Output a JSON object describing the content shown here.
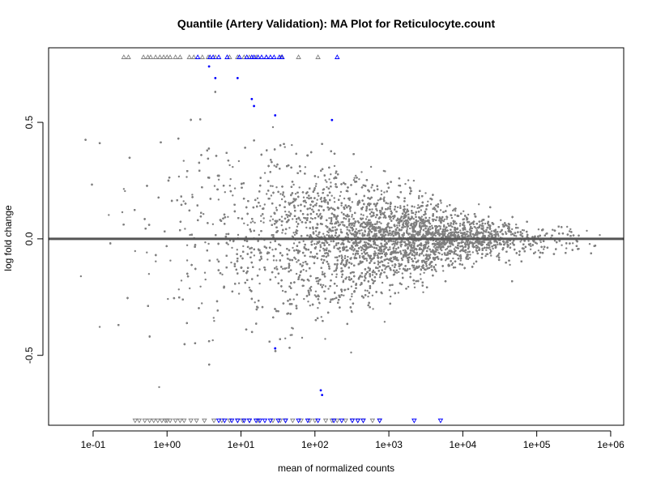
{
  "chart_data": {
    "type": "scatter",
    "title": "Quantile (Artery Validation): MA Plot for Reticulocyte.count",
    "xlabel": "mean of normalized counts",
    "ylabel": "log fold change",
    "x_scale": "log10",
    "xlim": [
      0.025,
      1500000
    ],
    "ylim": [
      -0.8,
      0.82
    ],
    "x_ticks": [
      {
        "value": 0.1,
        "label": "1e-01"
      },
      {
        "value": 1,
        "label": "1e+00"
      },
      {
        "value": 10,
        "label": "1e+01"
      },
      {
        "value": 100,
        "label": "1e+02"
      },
      {
        "value": 1000,
        "label": "1e+03"
      },
      {
        "value": 10000,
        "label": "1e+04"
      },
      {
        "value": 100000,
        "label": "1e+05"
      },
      {
        "value": 1000000,
        "label": "1e+06"
      }
    ],
    "y_ticks": [
      {
        "value": -0.5,
        "label": "-0.5"
      },
      {
        "value": 0.0,
        "label": "0.0"
      },
      {
        "value": 0.5,
        "label": "0.5"
      }
    ],
    "reference_line_y": 0,
    "colors": {
      "not_significant": "#808080",
      "significant": "#0000ff",
      "reference_line": "#555555",
      "axes": "#000000"
    },
    "series": [
      {
        "marker": "dot",
        "color": "#808080",
        "approximate_point_count": 19000,
        "density_peak_x": 3000,
        "spread_note": "points fan out from tight cluster near 0 at high counts to wide spread at low counts"
      },
      {
        "marker": "dot",
        "color": "#0000ff",
        "points": [
          {
            "x": 3.7,
            "y": 0.74
          },
          {
            "x": 4.5,
            "y": 0.69
          },
          {
            "x": 9.0,
            "y": 0.69
          },
          {
            "x": 14,
            "y": 0.6
          },
          {
            "x": 15,
            "y": 0.57
          },
          {
            "x": 29,
            "y": 0.53
          },
          {
            "x": 170,
            "y": 0.51
          },
          {
            "x": 29,
            "y": -0.47
          },
          {
            "x": 120,
            "y": -0.65
          },
          {
            "x": 125,
            "y": -0.67
          }
        ]
      },
      {
        "marker": "triangle-up",
        "color": "#808080",
        "y": 0.78,
        "x": [
          0.26,
          0.3,
          0.48,
          0.55,
          0.6,
          0.7,
          0.8,
          0.9,
          1.0,
          1.1,
          1.3,
          1.5,
          2.0,
          2.3,
          3.0,
          3.6,
          4.5,
          7.0,
          9.0,
          11,
          13,
          16,
          22,
          35,
          60,
          110
        ]
      },
      {
        "marker": "triangle-up",
        "color": "#0000ff",
        "y": 0.78,
        "x": [
          2.6,
          3.8,
          4.2,
          5.0,
          6.5,
          9.5,
          12,
          14,
          15,
          17,
          19,
          22,
          25,
          28,
          33,
          36,
          200
        ]
      },
      {
        "marker": "triangle-down",
        "color": "#808080",
        "y": -0.78,
        "x": [
          0.37,
          0.42,
          0.5,
          0.58,
          0.66,
          0.75,
          0.85,
          0.95,
          1.0,
          1.1,
          1.3,
          1.5,
          1.7,
          2.1,
          2.5,
          3.2,
          4.3,
          5.5,
          7.0,
          9.0,
          10.5,
          13,
          17,
          27,
          34,
          40,
          50,
          65,
          85,
          100,
          140,
          170,
          200,
          260,
          320,
          380,
          450,
          600,
          750
        ]
      },
      {
        "marker": "triangle-down",
        "color": "#0000ff",
        "y": -0.78,
        "x": [
          5.0,
          6.0,
          7.5,
          9.0,
          11,
          13,
          16,
          18,
          21,
          25,
          32,
          40,
          60,
          80,
          110,
          180,
          230,
          320,
          380,
          450,
          750,
          2200,
          5000
        ]
      }
    ]
  }
}
